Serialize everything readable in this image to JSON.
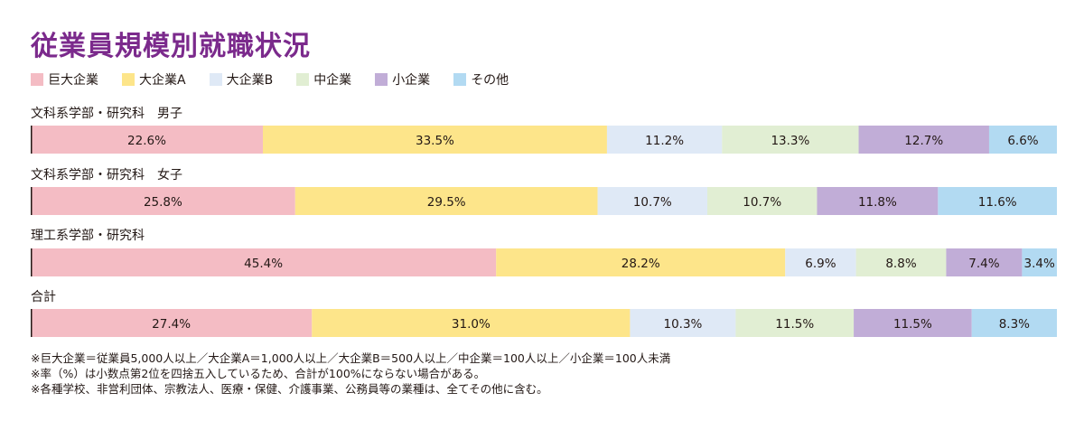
{
  "title": "従業員規模別就職状況",
  "legend": [
    {
      "label": "巨大企業",
      "color": "#f4bcc4"
    },
    {
      "label": "大企業A",
      "color": "#fde58a"
    },
    {
      "label": "大企業B",
      "color": "#dfe9f6"
    },
    {
      "label": "中企業",
      "color": "#e1eed3"
    },
    {
      "label": "小企業",
      "color": "#c1add7"
    },
    {
      "label": "その他",
      "color": "#b2daf2"
    }
  ],
  "chart_data": {
    "type": "bar",
    "stacked": "percent",
    "orientation": "horizontal",
    "categories": [
      "文科系学部・研究科　男子",
      "文科系学部・研究科　女子",
      "理工系学部・研究科",
      "合計"
    ],
    "series": [
      {
        "name": "巨大企業",
        "values": [
          22.6,
          25.8,
          45.4,
          27.4
        ],
        "labels": [
          "22.6%",
          "25.8%",
          "45.4%",
          "27.4%"
        ]
      },
      {
        "name": "大企業A",
        "values": [
          33.5,
          29.5,
          28.2,
          31.0
        ],
        "labels": [
          "33.5%",
          "29.5%",
          "28.2%",
          "31.0%"
        ]
      },
      {
        "name": "大企業B",
        "values": [
          11.2,
          10.7,
          6.9,
          10.3
        ],
        "labels": [
          "11.2%",
          "10.7%",
          "6.9%",
          "10.3%"
        ]
      },
      {
        "name": "中企業",
        "values": [
          13.3,
          10.7,
          8.8,
          11.5
        ],
        "labels": [
          "13.3%",
          "10.7%",
          "8.8%",
          "11.5%"
        ]
      },
      {
        "name": "小企業",
        "values": [
          12.7,
          11.8,
          7.4,
          11.5
        ],
        "labels": [
          "12.7%",
          "11.8%",
          "7.4%",
          "11.5%"
        ]
      },
      {
        "name": "その他",
        "values": [
          6.6,
          11.6,
          3.4,
          8.3
        ],
        "labels": [
          "6.6%",
          "11.6%",
          "3.4%",
          "8.3%"
        ]
      }
    ],
    "legend_position": "top-left",
    "grid": false
  },
  "footnotes": [
    "※巨大企業＝従業員5,000人以上／大企業A＝1,000人以上／大企業B＝500人以上／中企業＝100人以上／小企業＝100人未満",
    "※率（%）は小数点第2位を四捨五入しているため、合計が100%にならない場合がある。",
    "※各種学校、非営利団体、宗教法人、医療・保健、介護事業、公務員等の業種は、全てその他に含む。"
  ]
}
